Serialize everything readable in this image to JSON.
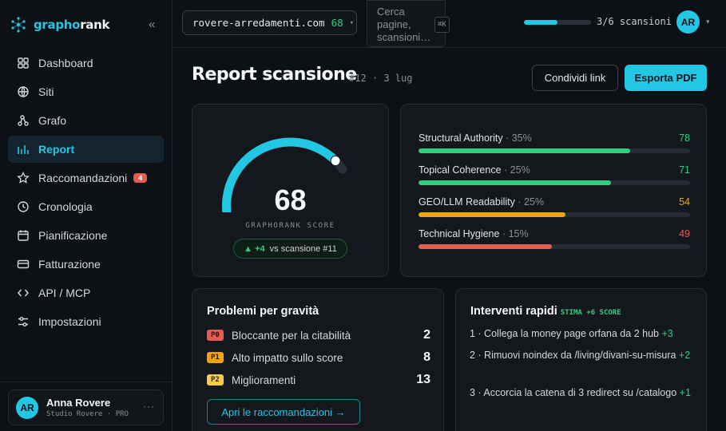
{
  "app": {
    "logo_part1": "grapho",
    "logo_part2": "rank",
    "collapse_glyph": "«"
  },
  "sidebar": {
    "items": [
      {
        "label": "Dashboard",
        "icon": "grid-icon"
      },
      {
        "label": "Siti",
        "icon": "globe-icon"
      },
      {
        "label": "Grafo",
        "icon": "graph-icon"
      },
      {
        "label": "Report",
        "icon": "bar-chart-icon",
        "active": true
      },
      {
        "label": "Raccomandazioni",
        "icon": "star-icon",
        "badge": "4"
      },
      {
        "label": "Cronologia",
        "icon": "clock-icon"
      },
      {
        "label": "Pianificazione",
        "icon": "calendar-icon"
      },
      {
        "label": "Fatturazione",
        "icon": "credit-card-icon"
      },
      {
        "label": "API / MCP",
        "icon": "code-icon"
      },
      {
        "label": "Impostazioni",
        "icon": "sliders-icon"
      }
    ],
    "user": {
      "initials": "AR",
      "name": "Anna Rovere",
      "subtitle": "Studio Rovere · PRO",
      "more": "···"
    }
  },
  "topbar": {
    "site": "rovere-arredamenti.com",
    "site_score": "68",
    "search_placeholder": "Cerca pagine, scansioni…",
    "search_shortcut": "⌘K",
    "scan_progress": 0.5,
    "scan_text": "3/6 scansioni",
    "avatar_initials": "AR"
  },
  "header": {
    "title": "Report scansione",
    "meta": "#12 · 3 lug",
    "share_label": "Condividi link",
    "export_label": "Esporta PDF"
  },
  "score": {
    "value": "68",
    "fraction": 0.68,
    "label": "GRAPHORANK SCORE",
    "delta_arrow": "▲",
    "delta": "+4",
    "delta_text": "vs scansione #11"
  },
  "metrics": [
    {
      "name": "Structural Authority",
      "weight": "· 35%",
      "value": 78,
      "display": "78",
      "color": "#2fcf7d"
    },
    {
      "name": "Topical Coherence",
      "weight": "· 25%",
      "value": 71,
      "display": "71",
      "color": "#2fcf7d"
    },
    {
      "name": "GEO/LLM Readability",
      "weight": "· 25%",
      "value": 54,
      "display": "54",
      "color": "#f0a30a"
    },
    {
      "name": "Technical Hygiene",
      "weight": "· 15%",
      "value": 49,
      "display": "49",
      "color": "#e35d52"
    }
  ],
  "issues": {
    "title": "Problemi per gravità",
    "items": [
      {
        "priority": "P0",
        "label": "Bloccante per la citabilità",
        "count": "2",
        "bg": "#e35d52",
        "fg": "#2a0b08"
      },
      {
        "priority": "P1",
        "label": "Alto impatto sullo score",
        "count": "8",
        "bg": "#f0a30a",
        "fg": "#2a1b02"
      },
      {
        "priority": "P2",
        "label": "Miglioramenti",
        "count": "13",
        "bg": "#f2cc4a",
        "fg": "#2a2202"
      }
    ],
    "button_label": "Apri le raccomandazioni →"
  },
  "quick": {
    "title": "Interventi rapidi",
    "tag": "STIMA +6 SCORE",
    "items": [
      {
        "text": "1 · Collega la money page orfana da 2 hub ",
        "gain": "+3"
      },
      {
        "text": "2 · Rimuovi noindex da /living/divani-su-misura ",
        "gain": "+2"
      },
      {
        "text": "3 · Accorcia la catena di 3 redirect su /catalogo ",
        "gain": "+1"
      }
    ]
  }
}
